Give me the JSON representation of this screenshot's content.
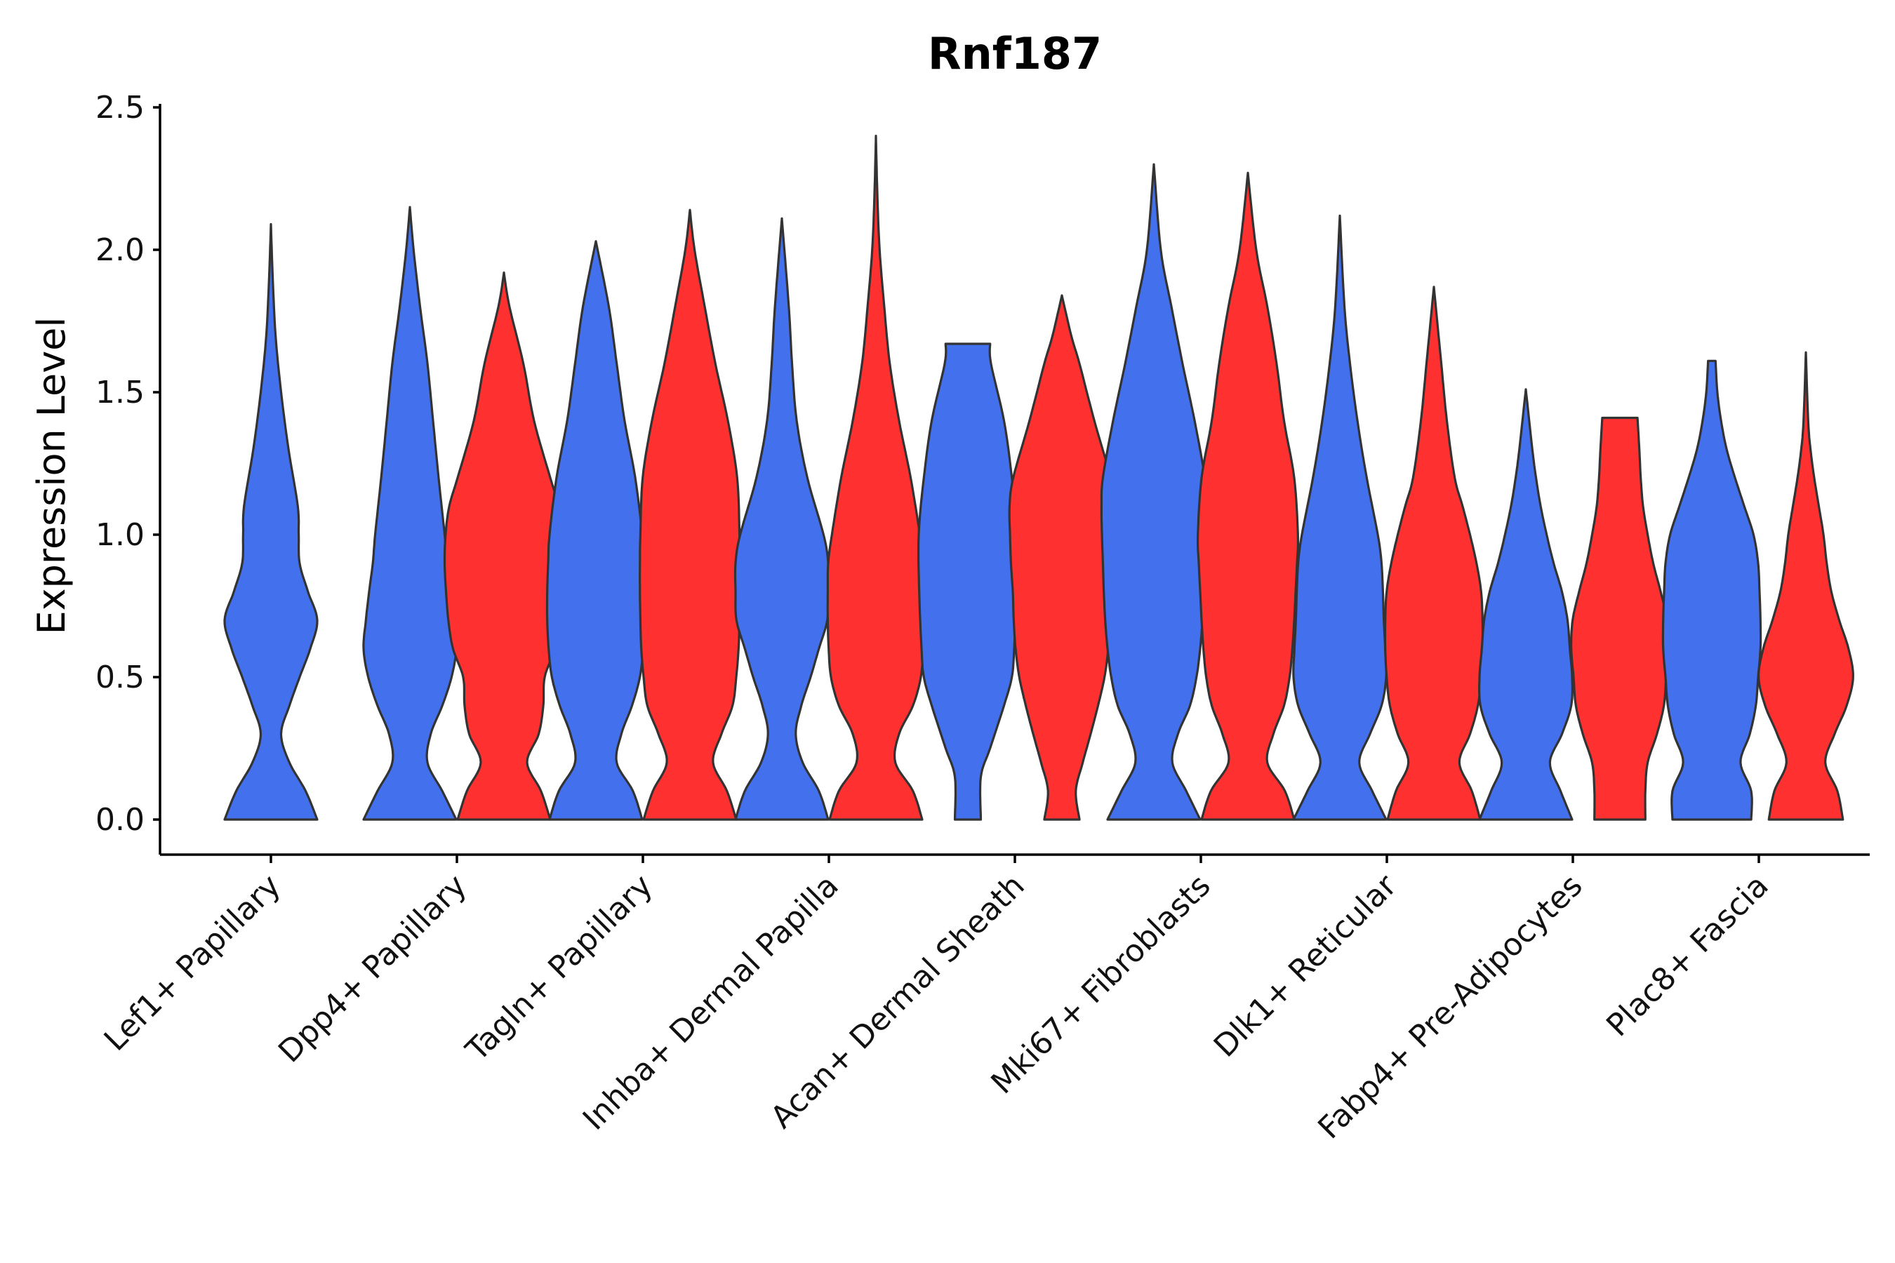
{
  "chart_data": {
    "type": "violin",
    "title": "Rnf187",
    "xlabel": "",
    "ylabel": "Expression Level",
    "ylim": [
      -0.12,
      2.5
    ],
    "yticks": [
      "0.0",
      "0.5",
      "1.0",
      "1.5",
      "2.0",
      "2.5"
    ],
    "grid": false,
    "legend": "none",
    "series_colors": {
      "blue": "#4370EC",
      "red": "#FF3030"
    },
    "categories": [
      "Lef1+ Papillary",
      "Dpp4+ Papillary",
      "Tagln+ Papillary",
      "Inhba+ Dermal Papilla",
      "Acan+ Dermal Sheath",
      "Mki67+ Fibroblasts",
      "Dlk1+ Reticular",
      "Fabp4+ Pre-Adipocytes",
      "Plac8+ Fascia"
    ],
    "violins": [
      {
        "category": "Lef1+ Papillary",
        "group": "blue",
        "max": 2.09,
        "profile": [
          [
            0,
            1.0
          ],
          [
            0.1,
            0.75
          ],
          [
            0.2,
            0.4
          ],
          [
            0.3,
            0.22
          ],
          [
            0.4,
            0.4
          ],
          [
            0.5,
            0.62
          ],
          [
            0.6,
            0.85
          ],
          [
            0.7,
            1.0
          ],
          [
            0.8,
            0.8
          ],
          [
            0.9,
            0.62
          ],
          [
            1.0,
            0.6
          ],
          [
            1.1,
            0.58
          ],
          [
            1.3,
            0.38
          ],
          [
            1.5,
            0.22
          ],
          [
            1.7,
            0.1
          ],
          [
            1.9,
            0.04
          ],
          [
            2.09,
            0.0
          ]
        ]
      },
      {
        "category": "Dpp4+ Papillary",
        "group": "blue",
        "max": 2.15,
        "profile": [
          [
            0,
            1.0
          ],
          [
            0.1,
            0.7
          ],
          [
            0.2,
            0.38
          ],
          [
            0.3,
            0.45
          ],
          [
            0.4,
            0.7
          ],
          [
            0.5,
            0.9
          ],
          [
            0.6,
            1.0
          ],
          [
            0.7,
            0.95
          ],
          [
            0.8,
            0.88
          ],
          [
            0.9,
            0.8
          ],
          [
            1.0,
            0.75
          ],
          [
            1.2,
            0.62
          ],
          [
            1.4,
            0.5
          ],
          [
            1.6,
            0.38
          ],
          [
            1.8,
            0.22
          ],
          [
            2.0,
            0.08
          ],
          [
            2.15,
            0.0
          ]
        ]
      },
      {
        "category": "Dpp4+ Papillary",
        "group": "red",
        "max": 1.92,
        "profile": [
          [
            0,
            1.0
          ],
          [
            0.1,
            0.8
          ],
          [
            0.2,
            0.5
          ],
          [
            0.3,
            0.75
          ],
          [
            0.4,
            0.85
          ],
          [
            0.5,
            0.88
          ],
          [
            0.6,
            1.1
          ],
          [
            0.7,
            1.2
          ],
          [
            0.8,
            1.25
          ],
          [
            0.9,
            1.28
          ],
          [
            1.0,
            1.26
          ],
          [
            1.1,
            1.18
          ],
          [
            1.2,
            1.0
          ],
          [
            1.4,
            0.65
          ],
          [
            1.6,
            0.42
          ],
          [
            1.8,
            0.12
          ],
          [
            1.92,
            0.0
          ]
        ]
      },
      {
        "category": "Tagln+ Papillary",
        "group": "blue",
        "max": 2.03,
        "profile": [
          [
            0,
            1.0
          ],
          [
            0.1,
            0.8
          ],
          [
            0.2,
            0.45
          ],
          [
            0.3,
            0.55
          ],
          [
            0.4,
            0.78
          ],
          [
            0.5,
            0.95
          ],
          [
            0.6,
            1.02
          ],
          [
            0.7,
            1.05
          ],
          [
            0.8,
            1.05
          ],
          [
            0.9,
            1.03
          ],
          [
            1.0,
            1.0
          ],
          [
            1.2,
            0.85
          ],
          [
            1.4,
            0.62
          ],
          [
            1.6,
            0.45
          ],
          [
            1.8,
            0.28
          ],
          [
            2.03,
            0.0
          ]
        ]
      },
      {
        "category": "Tagln+ Papillary",
        "group": "red",
        "max": 2.14,
        "profile": [
          [
            0,
            1.0
          ],
          [
            0.1,
            0.8
          ],
          [
            0.2,
            0.5
          ],
          [
            0.3,
            0.68
          ],
          [
            0.4,
            0.92
          ],
          [
            0.5,
            1.0
          ],
          [
            0.6,
            1.05
          ],
          [
            0.7,
            1.07
          ],
          [
            0.8,
            1.08
          ],
          [
            0.9,
            1.08
          ],
          [
            1.0,
            1.07
          ],
          [
            1.2,
            1.02
          ],
          [
            1.4,
            0.82
          ],
          [
            1.6,
            0.55
          ],
          [
            1.8,
            0.32
          ],
          [
            2.0,
            0.1
          ],
          [
            2.14,
            0.0
          ]
        ]
      },
      {
        "category": "Inhba+ Dermal Papilla",
        "group": "blue",
        "max": 2.11,
        "profile": [
          [
            0,
            1.0
          ],
          [
            0.1,
            0.8
          ],
          [
            0.2,
            0.45
          ],
          [
            0.3,
            0.3
          ],
          [
            0.4,
            0.42
          ],
          [
            0.5,
            0.62
          ],
          [
            0.6,
            0.8
          ],
          [
            0.7,
            0.98
          ],
          [
            0.8,
            1.0
          ],
          [
            0.9,
            1.0
          ],
          [
            1.0,
            0.9
          ],
          [
            1.2,
            0.55
          ],
          [
            1.4,
            0.32
          ],
          [
            1.6,
            0.22
          ],
          [
            1.8,
            0.15
          ],
          [
            2.11,
            0.0
          ]
        ]
      },
      {
        "category": "Inhba+ Dermal Papilla",
        "group": "red",
        "max": 2.4,
        "profile": [
          [
            0,
            1.0
          ],
          [
            0.1,
            0.8
          ],
          [
            0.2,
            0.42
          ],
          [
            0.3,
            0.5
          ],
          [
            0.4,
            0.8
          ],
          [
            0.5,
            0.97
          ],
          [
            0.6,
            1.02
          ],
          [
            0.7,
            1.04
          ],
          [
            0.8,
            1.04
          ],
          [
            0.9,
            1.03
          ],
          [
            1.0,
            0.95
          ],
          [
            1.2,
            0.75
          ],
          [
            1.4,
            0.5
          ],
          [
            1.6,
            0.3
          ],
          [
            1.8,
            0.18
          ],
          [
            2.0,
            0.08
          ],
          [
            2.2,
            0.03
          ],
          [
            2.4,
            0.0
          ]
        ]
      },
      {
        "category": "Acan+ Dermal Sheath",
        "group": "blue",
        "max": 1.67,
        "profile": [
          [
            0,
            0.28
          ],
          [
            0.15,
            0.28
          ],
          [
            0.25,
            0.48
          ],
          [
            0.4,
            0.78
          ],
          [
            0.5,
            0.95
          ],
          [
            0.6,
            1.0
          ],
          [
            0.8,
            1.05
          ],
          [
            1.0,
            1.06
          ],
          [
            1.2,
            0.95
          ],
          [
            1.4,
            0.78
          ],
          [
            1.6,
            0.5
          ],
          [
            1.67,
            0.48
          ]
        ]
      },
      {
        "category": "Acan+ Dermal Sheath",
        "group": "red",
        "max": 1.84,
        "profile": [
          [
            0,
            0.38
          ],
          [
            0.1,
            0.3
          ],
          [
            0.2,
            0.45
          ],
          [
            0.3,
            0.62
          ],
          [
            0.4,
            0.78
          ],
          [
            0.5,
            0.92
          ],
          [
            0.6,
            1.0
          ],
          [
            0.7,
            1.04
          ],
          [
            0.8,
            1.06
          ],
          [
            0.9,
            1.1
          ],
          [
            1.0,
            1.12
          ],
          [
            1.1,
            1.13
          ],
          [
            1.2,
            1.05
          ],
          [
            1.4,
            0.7
          ],
          [
            1.6,
            0.38
          ],
          [
            1.7,
            0.2
          ],
          [
            1.84,
            0.0
          ]
        ]
      },
      {
        "category": "Mki67+ Fibroblasts",
        "group": "blue",
        "max": 2.3,
        "profile": [
          [
            0,
            1.0
          ],
          [
            0.1,
            0.7
          ],
          [
            0.2,
            0.4
          ],
          [
            0.3,
            0.52
          ],
          [
            0.4,
            0.78
          ],
          [
            0.5,
            0.92
          ],
          [
            0.6,
            1.0
          ],
          [
            0.7,
            1.05
          ],
          [
            0.8,
            1.08
          ],
          [
            0.9,
            1.1
          ],
          [
            1.0,
            1.12
          ],
          [
            1.1,
            1.13
          ],
          [
            1.2,
            1.1
          ],
          [
            1.4,
            0.88
          ],
          [
            1.6,
            0.62
          ],
          [
            1.8,
            0.38
          ],
          [
            2.0,
            0.15
          ],
          [
            2.3,
            0.0
          ]
        ]
      },
      {
        "category": "Mki67+ Fibroblasts",
        "group": "red",
        "max": 2.27,
        "profile": [
          [
            0,
            1.0
          ],
          [
            0.1,
            0.8
          ],
          [
            0.2,
            0.42
          ],
          [
            0.3,
            0.55
          ],
          [
            0.4,
            0.78
          ],
          [
            0.5,
            0.9
          ],
          [
            0.6,
            0.96
          ],
          [
            0.7,
            1.0
          ],
          [
            0.8,
            1.03
          ],
          [
            0.9,
            1.06
          ],
          [
            1.0,
            1.08
          ],
          [
            1.2,
            1.0
          ],
          [
            1.4,
            0.78
          ],
          [
            1.6,
            0.62
          ],
          [
            1.8,
            0.42
          ],
          [
            2.0,
            0.18
          ],
          [
            2.27,
            0.0
          ]
        ]
      },
      {
        "category": "Dlk1+ Reticular",
        "group": "blue",
        "max": 2.12,
        "profile": [
          [
            0,
            1.0
          ],
          [
            0.1,
            0.7
          ],
          [
            0.2,
            0.42
          ],
          [
            0.3,
            0.65
          ],
          [
            0.4,
            0.9
          ],
          [
            0.5,
            1.0
          ],
          [
            0.6,
            0.98
          ],
          [
            0.7,
            0.95
          ],
          [
            0.8,
            0.93
          ],
          [
            0.9,
            0.9
          ],
          [
            1.0,
            0.82
          ],
          [
            1.2,
            0.58
          ],
          [
            1.4,
            0.38
          ],
          [
            1.6,
            0.22
          ],
          [
            1.8,
            0.1
          ],
          [
            2.12,
            0.0
          ]
        ]
      },
      {
        "category": "Dlk1+ Reticular",
        "group": "red",
        "max": 1.87,
        "profile": [
          [
            0,
            1.0
          ],
          [
            0.1,
            0.82
          ],
          [
            0.2,
            0.55
          ],
          [
            0.3,
            0.78
          ],
          [
            0.4,
            0.95
          ],
          [
            0.5,
            1.02
          ],
          [
            0.6,
            1.05
          ],
          [
            0.7,
            1.05
          ],
          [
            0.8,
            1.02
          ],
          [
            0.9,
            0.92
          ],
          [
            1.0,
            0.78
          ],
          [
            1.1,
            0.62
          ],
          [
            1.2,
            0.45
          ],
          [
            1.4,
            0.28
          ],
          [
            1.6,
            0.16
          ],
          [
            1.87,
            0.0
          ]
        ]
      },
      {
        "category": "Fabp4+ Pre-Adipocytes",
        "group": "blue",
        "max": 1.51,
        "profile": [
          [
            0,
            1.0
          ],
          [
            0.1,
            0.75
          ],
          [
            0.2,
            0.52
          ],
          [
            0.3,
            0.78
          ],
          [
            0.4,
            0.98
          ],
          [
            0.5,
            1.0
          ],
          [
            0.6,
            0.95
          ],
          [
            0.7,
            0.9
          ],
          [
            0.8,
            0.78
          ],
          [
            0.9,
            0.6
          ],
          [
            1.0,
            0.45
          ],
          [
            1.1,
            0.32
          ],
          [
            1.2,
            0.22
          ],
          [
            1.3,
            0.14
          ],
          [
            1.51,
            0.0
          ]
        ]
      },
      {
        "category": "Fabp4+ Pre-Adipocytes",
        "group": "red",
        "max": 1.41,
        "profile": [
          [
            0,
            0.55
          ],
          [
            0.1,
            0.55
          ],
          [
            0.2,
            0.6
          ],
          [
            0.3,
            0.8
          ],
          [
            0.4,
            0.95
          ],
          [
            0.5,
            1.0
          ],
          [
            0.6,
            1.05
          ],
          [
            0.7,
            1.02
          ],
          [
            0.8,
            0.88
          ],
          [
            0.9,
            0.72
          ],
          [
            1.0,
            0.6
          ],
          [
            1.1,
            0.5
          ],
          [
            1.2,
            0.45
          ],
          [
            1.3,
            0.42
          ],
          [
            1.41,
            0.38
          ]
        ]
      },
      {
        "category": "Plac8+ Fascia",
        "group": "blue",
        "max": 1.61,
        "profile": [
          [
            0,
            0.85
          ],
          [
            0.1,
            0.85
          ],
          [
            0.2,
            0.62
          ],
          [
            0.3,
            0.82
          ],
          [
            0.4,
            0.95
          ],
          [
            0.5,
            1.0
          ],
          [
            0.6,
            1.05
          ],
          [
            0.7,
            1.05
          ],
          [
            0.8,
            1.03
          ],
          [
            0.9,
            1.0
          ],
          [
            1.0,
            0.9
          ],
          [
            1.1,
            0.7
          ],
          [
            1.2,
            0.5
          ],
          [
            1.3,
            0.32
          ],
          [
            1.4,
            0.2
          ],
          [
            1.5,
            0.12
          ],
          [
            1.61,
            0.08
          ]
        ]
      },
      {
        "category": "Plac8+ Fascia",
        "group": "red",
        "max": 1.64,
        "profile": [
          [
            0,
            0.8
          ],
          [
            0.1,
            0.68
          ],
          [
            0.2,
            0.42
          ],
          [
            0.3,
            0.62
          ],
          [
            0.4,
            0.88
          ],
          [
            0.5,
            1.02
          ],
          [
            0.6,
            0.92
          ],
          [
            0.7,
            0.72
          ],
          [
            0.8,
            0.55
          ],
          [
            0.9,
            0.45
          ],
          [
            1.0,
            0.38
          ],
          [
            1.1,
            0.28
          ],
          [
            1.2,
            0.18
          ],
          [
            1.3,
            0.1
          ],
          [
            1.4,
            0.05
          ],
          [
            1.64,
            0.0
          ]
        ]
      }
    ]
  }
}
